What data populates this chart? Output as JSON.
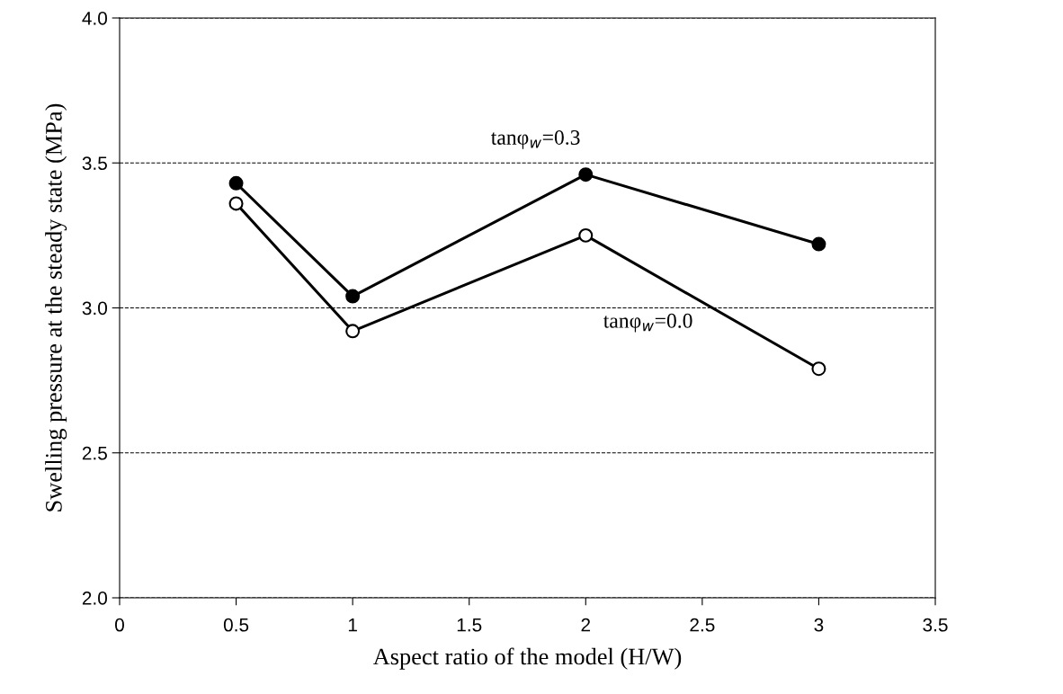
{
  "chart_data": {
    "type": "line",
    "xlabel": "Aspect ratio of the model (H/W)",
    "ylabel": "Swelling pressure at the steady state (MPa)",
    "x": [
      0.5,
      1,
      2,
      3
    ],
    "series": [
      {
        "name": "tanφ$_{w}$=0.3",
        "color": "#000000",
        "values": [
          3.43,
          3.04,
          3.46,
          3.22
        ]
      },
      {
        "name": "tanφ$_{w}$=0.0",
        "color": "#ffffff",
        "values": [
          3.36,
          2.92,
          3.25,
          2.79
        ]
      }
    ],
    "xlim": [
      0,
      3.5
    ],
    "xticks": [
      0,
      0.5,
      1,
      1.5,
      2,
      2.5,
      3,
      3.5
    ],
    "ylim": [
      2.0,
      4.0
    ],
    "yticks": [
      {
        "value": 2.0,
        "label": "2.0"
      },
      {
        "value": 2.5,
        "label": "2.5"
      },
      {
        "value": 3.0,
        "label": "3.0"
      },
      {
        "value": 3.5,
        "label": "3.5"
      },
      {
        "value": 4.0,
        "label": "4.0"
      }
    ],
    "grid": "y",
    "marker": "circle",
    "line_style": "solid",
    "legend": false
  }
}
